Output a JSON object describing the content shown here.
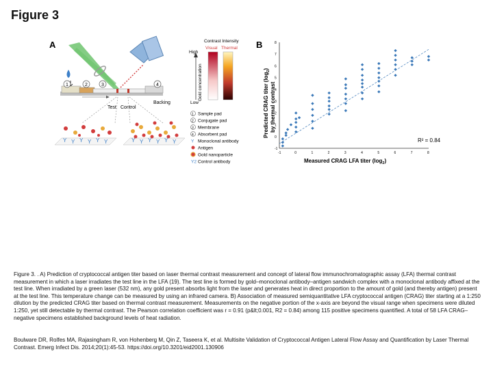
{
  "figure_title": "Figure 3",
  "panel_a": {
    "label": "A",
    "contrast_intensity": "Contrast Intensity",
    "visual": "Visual",
    "thermal": "Thermal",
    "high": "High",
    "low": "Low",
    "gold_concentration": "Gold concentration",
    "test": "Test",
    "control": "Control",
    "backing": "Backing",
    "strip_numbers": [
      "1",
      "2",
      "3",
      "4"
    ],
    "legend": [
      {
        "key": "1",
        "text": "Sample pad"
      },
      {
        "key": "2",
        "text": "Conjugate pad"
      },
      {
        "key": "3",
        "text": "Membrane"
      },
      {
        "key": "4",
        "text": "Absorbent pad"
      },
      {
        "key": "Y",
        "text": "Monoclonal antibody"
      },
      {
        "key": "dot",
        "text": "Antigen"
      },
      {
        "key": "gold",
        "text": "Gold nanoparticle"
      },
      {
        "key": "Y2",
        "text": "Control antibody"
      }
    ]
  },
  "panel_b": {
    "label": "B"
  },
  "chart_data": {
    "type": "scatter",
    "xlabel": "Measured CRAG LFA titer (log2)",
    "ylabel": "Predicted CRAG titer (log2) by thermal contrast",
    "xlim": [
      -1,
      8
    ],
    "ylim": [
      -1,
      8
    ],
    "xticks": [
      "-1",
      "0",
      "1",
      "2",
      "3",
      "4",
      "5",
      "6",
      "7",
      "8"
    ],
    "yticks": [
      "-1",
      "0",
      "1",
      "2",
      "3",
      "4",
      "5",
      "6",
      "7",
      "8"
    ],
    "annotation": "R² = 0.84",
    "points": [
      [
        -0.8,
        -0.8
      ],
      [
        -0.8,
        -0.5
      ],
      [
        -0.8,
        -0.2
      ],
      [
        -0.6,
        0.1
      ],
      [
        -0.6,
        0.3
      ],
      [
        -0.5,
        0.6
      ],
      [
        0,
        0.4
      ],
      [
        0,
        0.8
      ],
      [
        0,
        1.2
      ],
      [
        0,
        1.5
      ],
      [
        0,
        2.0
      ],
      [
        0.2,
        1.6
      ],
      [
        1,
        0.7
      ],
      [
        1,
        1.3
      ],
      [
        1,
        1.8
      ],
      [
        1,
        2.3
      ],
      [
        1,
        2.8
      ],
      [
        1,
        3.5
      ],
      [
        2,
        1.9
      ],
      [
        2,
        2.3
      ],
      [
        2,
        2.6
      ],
      [
        2,
        3.0
      ],
      [
        2,
        3.3
      ],
      [
        2,
        3.7
      ],
      [
        3,
        2.2
      ],
      [
        3,
        2.8
      ],
      [
        3,
        3.2
      ],
      [
        3,
        3.6
      ],
      [
        3,
        4.1
      ],
      [
        3,
        4.4
      ],
      [
        3,
        4.9
      ],
      [
        4,
        3.2
      ],
      [
        4,
        3.7
      ],
      [
        4,
        4.2
      ],
      [
        4,
        4.5
      ],
      [
        4,
        4.8
      ],
      [
        4,
        5.2
      ],
      [
        4,
        5.7
      ],
      [
        4,
        6.1
      ],
      [
        5,
        3.8
      ],
      [
        5,
        4.3
      ],
      [
        5,
        4.7
      ],
      [
        5,
        5.0
      ],
      [
        5,
        5.4
      ],
      [
        5,
        5.8
      ],
      [
        5,
        6.2
      ],
      [
        6,
        5.2
      ],
      [
        6,
        5.7
      ],
      [
        6,
        6.1
      ],
      [
        6,
        6.5
      ],
      [
        6,
        6.9
      ],
      [
        6,
        7.3
      ],
      [
        7,
        6.1
      ],
      [
        7,
        6.4
      ],
      [
        7,
        6.7
      ],
      [
        8,
        6.5
      ],
      [
        8,
        6.8
      ],
      [
        -0.3,
        1.0
      ]
    ],
    "fit_line": [
      [
        -1,
        -0.6
      ],
      [
        8,
        7.4
      ]
    ]
  },
  "caption": "Figure 3. . A) Prediction of cryptococcal antigen titer based on laser thermal contrast measurement and concept of lateral flow immunochromatographic assay (LFA) thermal contrast measurement in which a laser irradiates the test line in the LFA (19). The test line is formed by gold–monoclonal antibody–antigen sandwich complex with a monoclonal antibody affixed at the test line. When irradiated by a green laser (532 nm), any gold present absorbs light from the laser and generates heat in direct proportion to the amount of gold (and thereby antigen) present at the test line. This temperature change can be measured by using an infrared camera. B) Association of measured semiquantitative LFA cryptococcal antigen (CRAG) titer starting at a 1:250 dilution by the predicted CRAG titer based on thermal contrast measurement. Measurements on the negative portion of the x-axis are beyond the visual range when specimens were diluted 1:250, yet still detectable by thermal contrast. The Pearson correlation coefficient was r = 0.91 (p&lt;0.001, R2 = 0.84) among 115 positive specimens quantified. A total of 58 LFA CRAG–negative specimens established background levels of heat radiation.",
  "citation": "Boulware DR, Rolfes MA, Rajasingham R, von Hohenberg M, Qin Z, Taseera K, et al. Multisite Validation of Cryptococcal Antigen Lateral Flow Assay and Quantification by Laser Thermal Contrast. Emerg Infect Dis. 2014;20(1):45-53. https://doi.org/10.3201/eid2001.130906",
  "colors": {
    "point": "#3a78b8",
    "gold": "#e8a93a",
    "antigen": "#d23c3c",
    "antibody": "#3c7fc8",
    "laser": "#3aa83a"
  }
}
